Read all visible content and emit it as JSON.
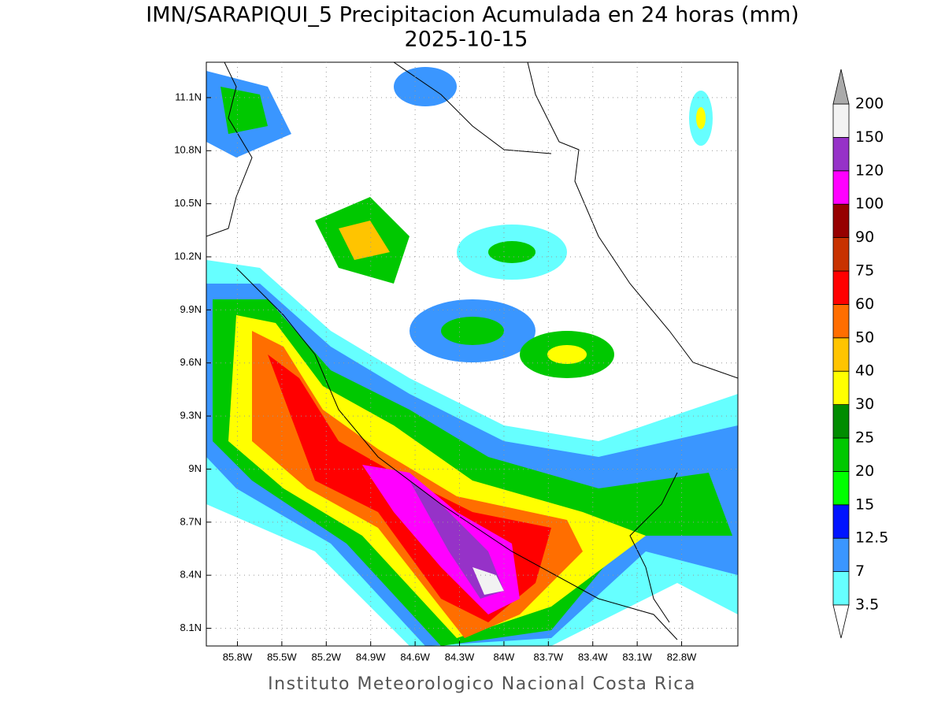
{
  "map": {
    "title": "IMN/SARAPIQUI_5 Precipitacion Acumulada en 24 horas (mm)",
    "subtitle": "2025-10-15",
    "footer": "Instituto Meteorologico Nacional Costa Rica",
    "lon_range": [
      -86.01,
      -82.42
    ],
    "lat_range": [
      8.0,
      11.3
    ],
    "lon_ticks": [
      {
        "value": -85.8,
        "label": "85.8W"
      },
      {
        "value": -85.5,
        "label": "85.5W"
      },
      {
        "value": -85.2,
        "label": "85.2W"
      },
      {
        "value": -84.9,
        "label": "84.9W"
      },
      {
        "value": -84.6,
        "label": "84.6W"
      },
      {
        "value": -84.3,
        "label": "84.3W"
      },
      {
        "value": -84.0,
        "label": "84W"
      },
      {
        "value": -83.7,
        "label": "83.7W"
      },
      {
        "value": -83.4,
        "label": "83.4W"
      },
      {
        "value": -83.1,
        "label": "83.1W"
      },
      {
        "value": -82.8,
        "label": "82.8W"
      }
    ],
    "lat_ticks": [
      {
        "value": 11.1,
        "label": "11.1N"
      },
      {
        "value": 10.8,
        "label": "10.8N"
      },
      {
        "value": 10.5,
        "label": "10.5N"
      },
      {
        "value": 10.2,
        "label": "10.2N"
      },
      {
        "value": 9.9,
        "label": "9.9N"
      },
      {
        "value": 9.6,
        "label": "9.6N"
      },
      {
        "value": 9.3,
        "label": "9.3N"
      },
      {
        "value": 9.0,
        "label": "9N"
      },
      {
        "value": 8.7,
        "label": "8.7N"
      },
      {
        "value": 8.4,
        "label": "8.4N"
      },
      {
        "value": 8.1,
        "label": "8.1N"
      }
    ],
    "grid": true,
    "colorbar": {
      "levels": [
        3.5,
        7,
        12.5,
        15,
        20,
        25,
        30,
        40,
        50,
        60,
        75,
        90,
        100,
        120,
        150,
        200
      ],
      "colors": [
        "#66ffff",
        "#3a96ff",
        "#0014ff",
        "#00ff00",
        "#00c800",
        "#008c00",
        "#ffff00",
        "#ffc400",
        "#ff6e00",
        "#ff0000",
        "#c83200",
        "#960000",
        "#ff00ff",
        "#9632c8",
        "#f2f2f2"
      ],
      "under_color": "#ffffff",
      "over_color": "#aaaaaa"
    }
  }
}
